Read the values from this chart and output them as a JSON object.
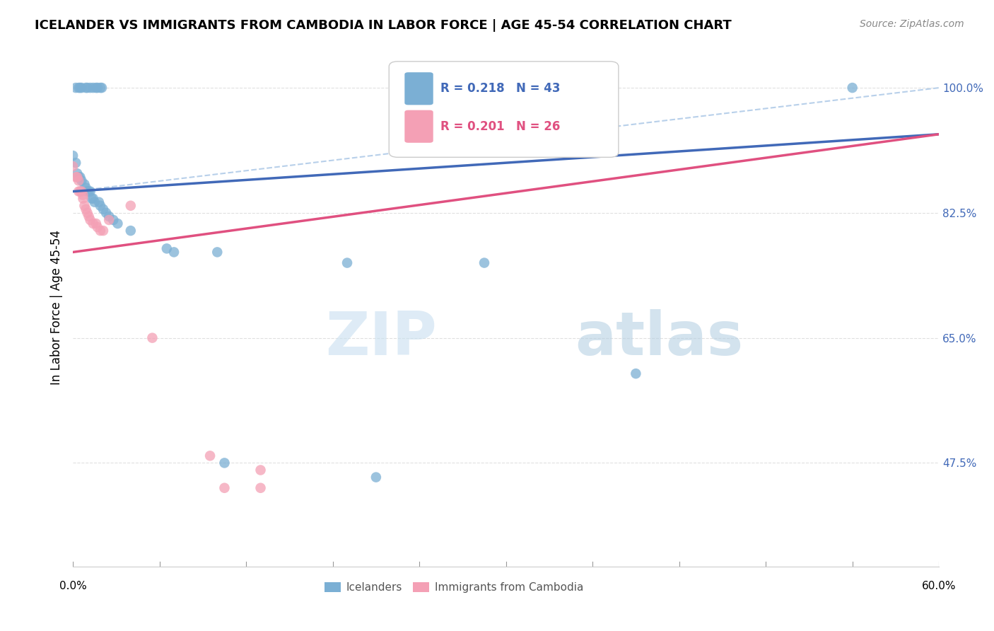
{
  "title": "ICELANDER VS IMMIGRANTS FROM CAMBODIA IN LABOR FORCE | AGE 45-54 CORRELATION CHART",
  "source": "Source: ZipAtlas.com",
  "ylabel": "In Labor Force | Age 45-54",
  "yticks": [
    0.475,
    0.65,
    0.825,
    1.0
  ],
  "ytick_labels": [
    "47.5%",
    "65.0%",
    "82.5%",
    "100.0%"
  ],
  "xmin": 0.0,
  "xmax": 0.6,
  "ymin": 0.33,
  "ymax": 1.055,
  "legend_blue_r": "R = 0.218",
  "legend_blue_n": "N = 43",
  "legend_pink_r": "R = 0.201",
  "legend_pink_n": "N = 26",
  "watermark_zip": "ZIP",
  "watermark_atlas": "atlas",
  "blue_scatter": [
    [
      0.002,
      1.0
    ],
    [
      0.004,
      1.0
    ],
    [
      0.005,
      1.0
    ],
    [
      0.006,
      1.0
    ],
    [
      0.009,
      1.0
    ],
    [
      0.01,
      1.0
    ],
    [
      0.012,
      1.0
    ],
    [
      0.014,
      1.0
    ],
    [
      0.016,
      1.0
    ],
    [
      0.017,
      1.0
    ],
    [
      0.019,
      1.0
    ],
    [
      0.02,
      1.0
    ],
    [
      0.0,
      0.905
    ],
    [
      0.002,
      0.895
    ],
    [
      0.003,
      0.88
    ],
    [
      0.004,
      0.875
    ],
    [
      0.005,
      0.875
    ],
    [
      0.006,
      0.87
    ],
    [
      0.008,
      0.865
    ],
    [
      0.009,
      0.86
    ],
    [
      0.01,
      0.855
    ],
    [
      0.011,
      0.855
    ],
    [
      0.012,
      0.855
    ],
    [
      0.013,
      0.845
    ],
    [
      0.014,
      0.845
    ],
    [
      0.015,
      0.84
    ],
    [
      0.018,
      0.84
    ],
    [
      0.019,
      0.835
    ],
    [
      0.021,
      0.83
    ],
    [
      0.023,
      0.825
    ],
    [
      0.025,
      0.82
    ],
    [
      0.028,
      0.815
    ],
    [
      0.031,
      0.81
    ],
    [
      0.04,
      0.8
    ],
    [
      0.065,
      0.775
    ],
    [
      0.07,
      0.77
    ],
    [
      0.1,
      0.77
    ],
    [
      0.105,
      0.475
    ],
    [
      0.19,
      0.755
    ],
    [
      0.21,
      0.455
    ],
    [
      0.285,
      0.755
    ],
    [
      0.39,
      0.6
    ],
    [
      0.54,
      1.0
    ]
  ],
  "pink_scatter": [
    [
      0.0,
      0.89
    ],
    [
      0.002,
      0.875
    ],
    [
      0.003,
      0.875
    ],
    [
      0.004,
      0.87
    ],
    [
      0.004,
      0.855
    ],
    [
      0.005,
      0.855
    ],
    [
      0.006,
      0.855
    ],
    [
      0.007,
      0.85
    ],
    [
      0.007,
      0.845
    ],
    [
      0.008,
      0.835
    ],
    [
      0.009,
      0.83
    ],
    [
      0.01,
      0.825
    ],
    [
      0.011,
      0.82
    ],
    [
      0.012,
      0.815
    ],
    [
      0.014,
      0.81
    ],
    [
      0.016,
      0.81
    ],
    [
      0.017,
      0.805
    ],
    [
      0.019,
      0.8
    ],
    [
      0.021,
      0.8
    ],
    [
      0.025,
      0.815
    ],
    [
      0.04,
      0.835
    ],
    [
      0.055,
      0.65
    ],
    [
      0.095,
      0.485
    ],
    [
      0.105,
      0.44
    ],
    [
      0.13,
      0.465
    ],
    [
      0.13,
      0.44
    ]
  ],
  "blue_line_x": [
    0.0,
    0.6
  ],
  "blue_line_y": [
    0.855,
    0.935
  ],
  "pink_line_x": [
    0.0,
    0.6
  ],
  "pink_line_y": [
    0.77,
    0.935
  ],
  "dashed_line_x": [
    0.0,
    0.6
  ],
  "dashed_line_y": [
    0.855,
    1.0
  ],
  "blue_color": "#7bafd4",
  "pink_color": "#f4a0b5",
  "blue_line_color": "#4169b8",
  "pink_line_color": "#e05080",
  "blue_dashed_color": "#b8d0ea",
  "background_color": "#ffffff",
  "grid_color": "#e0e0e0"
}
